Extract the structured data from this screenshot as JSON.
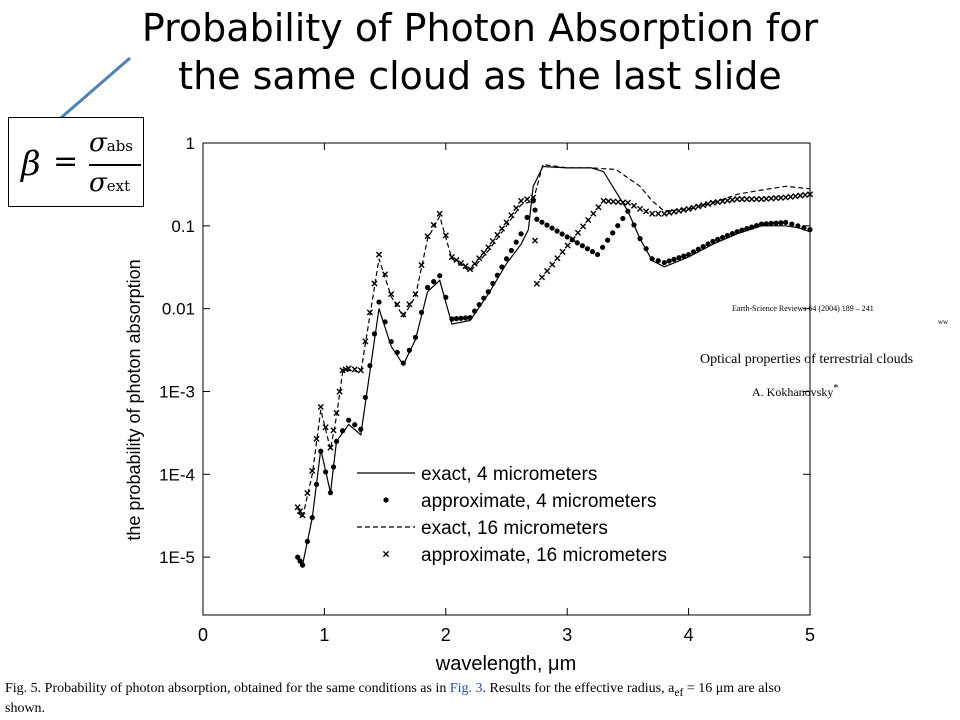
{
  "slide": {
    "title_line1": "Probability of Photon Absorption for",
    "title_line2": "the same cloud as the last slide"
  },
  "formula": {
    "lhs": "β",
    "equals": "=",
    "numerator_symbol": "σ",
    "numerator_sub": "abs",
    "denominator_symbol": "σ",
    "denominator_sub": "ext"
  },
  "reference": {
    "journal": "Earth-Science Reviews 64 (2004) 189 – 241",
    "ww": "ww",
    "article_title": "Optical properties of terrestrial clouds",
    "author": "A. Kokhanovsky",
    "author_mark": "*"
  },
  "caption": {
    "text1": "Fig. 5. Probability of photon absorption, obtained for the same conditions as in ",
    "link": "Fig. 3",
    "text2": ". Results for the effective radius, a",
    "sub": "ef",
    "text3": " = 16 μm are also",
    "line2": "shown."
  },
  "colors": {
    "arrow": "#4f81bd",
    "ink": "#000000",
    "link": "#2a4f9c"
  },
  "chart_data": {
    "type": "line",
    "xlabel": "wavelength, μm",
    "ylabel": "the probability of photon absorption",
    "xlim": [
      0,
      5
    ],
    "ylim": [
      2e-06,
      1
    ],
    "yscale": "log",
    "x_ticks": [
      0,
      1,
      2,
      3,
      4,
      5
    ],
    "x_tick_labels": [
      "0",
      "1",
      "2",
      "3",
      "4",
      "5"
    ],
    "y_ticks": [
      1e-05,
      0.0001,
      0.001,
      0.01,
      0.1,
      1
    ],
    "y_tick_labels": [
      "1E-5",
      "1E-4",
      "1E-3",
      "0.01",
      "0.1",
      "1"
    ],
    "legend_position": "bottom-center",
    "series": [
      {
        "name": "exact, 4 micrometers",
        "style": "solid",
        "x": [
          0.78,
          0.82,
          0.9,
          0.97,
          1.05,
          1.1,
          1.2,
          1.3,
          1.45,
          1.55,
          1.65,
          1.75,
          1.85,
          1.95,
          2.05,
          2.2,
          2.35,
          2.5,
          2.62,
          2.68,
          2.72,
          2.8,
          3.0,
          3.2,
          3.3,
          3.5,
          3.6,
          3.7,
          3.8,
          4.0,
          4.2,
          4.4,
          4.6,
          4.8,
          4.9,
          5.0
        ],
        "y": [
          9e-06,
          8e-06,
          3e-05,
          0.0002,
          6e-05,
          0.00025,
          0.0004,
          0.0003,
          0.01,
          0.0035,
          0.0021,
          0.0042,
          0.016,
          0.022,
          0.0065,
          0.0072,
          0.015,
          0.035,
          0.06,
          0.09,
          0.3,
          0.52,
          0.5,
          0.5,
          0.45,
          0.15,
          0.07,
          0.038,
          0.032,
          0.042,
          0.06,
          0.08,
          0.1,
          0.1,
          0.095,
          0.085
        ]
      },
      {
        "name": "approximate, 4 micrometers",
        "style": "dots",
        "x": [
          0.78,
          0.82,
          0.9,
          0.97,
          1.05,
          1.1,
          1.2,
          1.3,
          1.45,
          1.55,
          1.65,
          1.75,
          1.85,
          1.95,
          2.05,
          2.2,
          2.35,
          2.5,
          2.62,
          2.72,
          2.75,
          3.25,
          3.5,
          3.6,
          3.7,
          3.8,
          4.0,
          4.2,
          4.4,
          4.6,
          4.8,
          4.9,
          5.0
        ],
        "y": [
          1e-05,
          8e-06,
          3e-05,
          0.00019,
          6e-05,
          0.00025,
          0.00045,
          0.00035,
          0.012,
          0.004,
          0.0022,
          0.0045,
          0.018,
          0.025,
          0.0075,
          0.0078,
          0.016,
          0.04,
          0.08,
          0.2,
          0.12,
          0.045,
          0.15,
          0.07,
          0.04,
          0.036,
          0.045,
          0.065,
          0.085,
          0.105,
          0.11,
          0.1,
          0.09
        ]
      },
      {
        "name": "exact, 16 micrometers",
        "style": "dashed",
        "x": [
          0.78,
          0.82,
          0.9,
          0.97,
          1.05,
          1.1,
          1.15,
          1.2,
          1.3,
          1.45,
          1.55,
          1.65,
          1.75,
          1.85,
          1.95,
          2.05,
          2.2,
          2.35,
          2.5,
          2.62,
          2.72,
          2.8,
          3.0,
          3.2,
          3.4,
          3.6,
          3.7,
          3.8,
          4.0,
          4.2,
          4.4,
          4.6,
          4.8,
          5.0
        ],
        "y": [
          3.5e-05,
          3e-05,
          0.0001,
          0.0006,
          0.0002,
          0.0005,
          0.0017,
          0.0018,
          0.0017,
          0.04,
          0.014,
          0.008,
          0.014,
          0.07,
          0.13,
          0.04,
          0.028,
          0.05,
          0.1,
          0.18,
          0.2,
          0.55,
          0.5,
          0.5,
          0.48,
          0.3,
          0.2,
          0.15,
          0.16,
          0.19,
          0.24,
          0.27,
          0.3,
          0.28
        ]
      },
      {
        "name": "approximate, 16 micrometers",
        "style": "crosses",
        "x": [
          0.78,
          0.82,
          0.9,
          0.97,
          1.05,
          1.1,
          1.15,
          1.2,
          1.3,
          1.45,
          1.55,
          1.65,
          1.75,
          1.85,
          1.95,
          2.05,
          2.2,
          2.35,
          2.5,
          2.62,
          2.72,
          2.75,
          3.3,
          3.5,
          3.6,
          3.7,
          3.8,
          4.0,
          4.2,
          4.4,
          4.6,
          4.8,
          5.0
        ],
        "y": [
          4e-05,
          3.2e-05,
          0.00011,
          0.00065,
          0.00021,
          0.00055,
          0.0018,
          0.0019,
          0.0018,
          0.045,
          0.015,
          0.0085,
          0.015,
          0.075,
          0.14,
          0.042,
          0.03,
          0.055,
          0.11,
          0.2,
          0.22,
          0.02,
          0.2,
          0.19,
          0.16,
          0.14,
          0.14,
          0.16,
          0.19,
          0.21,
          0.21,
          0.22,
          0.24
        ]
      }
    ]
  }
}
